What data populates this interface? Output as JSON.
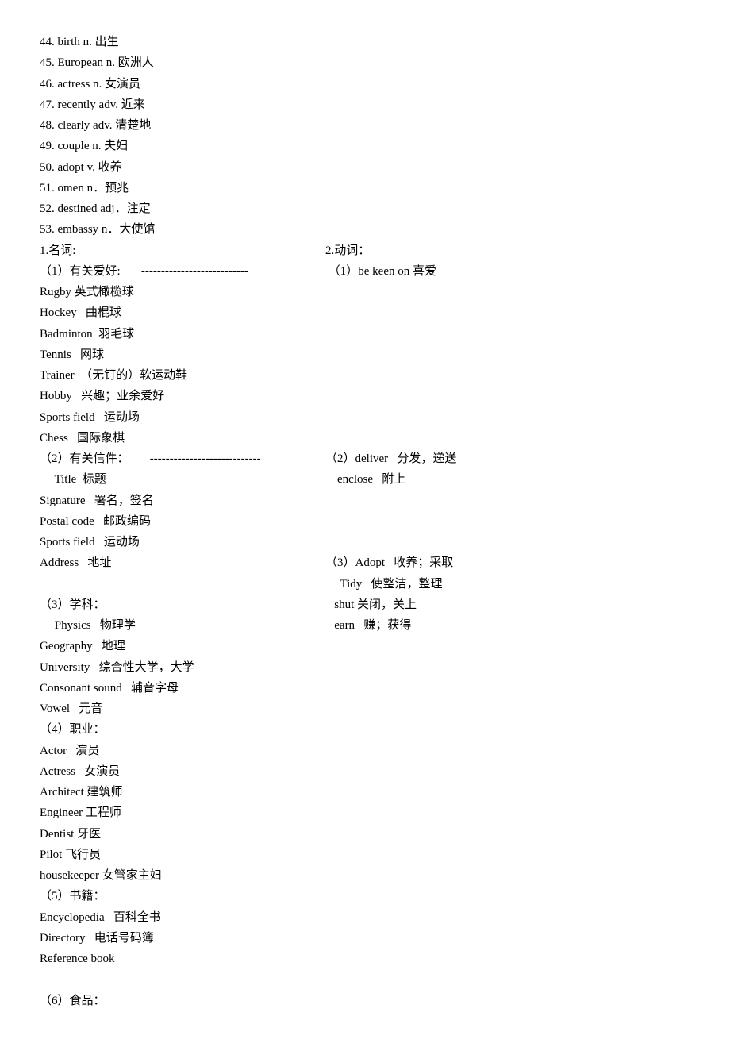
{
  "numbered_vocab": [
    "44. birth n. 出生",
    "45. European n. 欧洲人",
    "46. actress n. 女演员",
    "47. recently adv. 近来",
    "48. clearly adv. 清楚地",
    "49. couple n. 夫妇",
    "50. adopt v. 收养",
    "51. omen n．预兆",
    "52. destined adj．注定",
    "53. embassy n．大使馆"
  ],
  "headers_row": {
    "left": "1.名词:",
    "right": "2.动词："
  },
  "section1": {
    "header_left": "（1）有关爱好:       ---------------------------",
    "header_right": " （1）be keen on 喜爱",
    "items": [
      "Rugby 英式橄榄球",
      "Hockey   曲棍球",
      "Badminton  羽毛球",
      "Tennis   网球",
      "Trainer  （无钉的）软运动鞋",
      "Hobby   兴趣；业余爱好",
      "Sports field   运动场",
      "Chess   国际象棋"
    ]
  },
  "section2": {
    "header_left": "（2）有关信件：       ----------------------------",
    "header_right": "（2）deliver   分发，递送",
    "rows": [
      {
        "left": "     Title  标题",
        "right": "    enclose   附上"
      },
      {
        "left": "Signature   署名，签名",
        "right": ""
      },
      {
        "left": "Postal code   邮政编码",
        "right": ""
      },
      {
        "left": "Sports field   运动场",
        "right": ""
      },
      {
        "left": "Address   地址",
        "right": "（3）Adopt   收养；采取"
      },
      {
        "left": "",
        "right": "     Tidy   使整洁，整理"
      }
    ]
  },
  "section3": {
    "header_left": "（3）学科：",
    "header_right": "   shut 关闭，关上",
    "rows": [
      {
        "left": "     Physics   物理学",
        "right": "   earn   赚；获得"
      },
      {
        "left": "Geography   地理",
        "right": ""
      },
      {
        "left": "University   综合性大学，大学",
        "right": ""
      },
      {
        "left": "Consonant sound   辅音字母",
        "right": ""
      },
      {
        "left": "Vowel   元音",
        "right": ""
      }
    ]
  },
  "section4": {
    "header": "（4）职业：",
    "items": [
      "Actor   演员",
      "Actress   女演员",
      "Architect 建筑师",
      "Engineer 工程师",
      "Dentist 牙医",
      "Pilot 飞行员",
      "housekeeper 女管家主妇"
    ]
  },
  "section5": {
    "header": "（5）书籍：",
    "items": [
      "Encyclopedia   百科全书",
      "Directory   电话号码簿",
      "Reference book"
    ]
  },
  "blank_line": " ",
  "section6": {
    "header": "（6）食品："
  }
}
